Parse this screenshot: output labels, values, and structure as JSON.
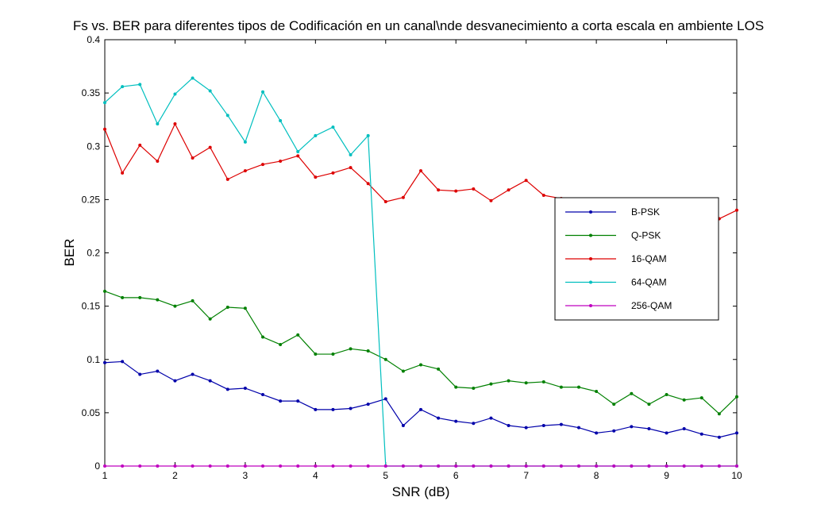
{
  "chart_data": {
    "type": "line",
    "title": "Fs vs. BER para diferentes tipos de Codificación en un canal\\nde desvanecimiento a corta escala en ambiente LOS",
    "xlabel": "SNR (dB)",
    "ylabel": "BER",
    "xlim": [
      1,
      10
    ],
    "ylim": [
      0,
      0.4
    ],
    "xticks": [
      1,
      2,
      3,
      4,
      5,
      6,
      7,
      8,
      9,
      10
    ],
    "yticks": [
      0,
      0.05,
      0.1,
      0.15,
      0.2,
      0.25,
      0.3,
      0.35,
      0.4
    ],
    "ytick_labels": [
      "0",
      "0.05",
      "0.1",
      "0.15",
      "0.2",
      "0.25",
      "0.3",
      "0.35",
      "0.4"
    ],
    "grid": false,
    "legend_position": "right",
    "x": [
      1,
      1.25,
      1.5,
      1.75,
      2,
      2.25,
      2.5,
      2.75,
      3,
      3.25,
      3.5,
      3.75,
      4,
      4.25,
      4.5,
      4.75,
      5,
      5.25,
      5.5,
      5.75,
      6,
      6.25,
      6.5,
      6.75,
      7,
      7.25,
      7.5,
      7.75,
      8,
      8.25,
      8.5,
      8.75,
      9,
      9.25,
      9.5,
      9.75,
      10
    ],
    "series": [
      {
        "name": "B-PSK",
        "color": "#0000aa",
        "values": [
          0.097,
          0.098,
          0.086,
          0.089,
          0.08,
          0.086,
          0.08,
          0.072,
          0.073,
          0.067,
          0.061,
          0.061,
          0.053,
          0.053,
          0.054,
          0.058,
          0.063,
          0.038,
          0.053,
          0.045,
          0.042,
          0.04,
          0.045,
          0.038,
          0.036,
          0.038,
          0.039,
          0.036,
          0.031,
          0.033,
          0.037,
          0.035,
          0.031,
          0.035,
          0.03,
          0.027,
          0.031
        ]
      },
      {
        "name": "Q-PSK",
        "color": "#008000",
        "values": [
          0.164,
          0.158,
          0.158,
          0.156,
          0.15,
          0.155,
          0.138,
          0.149,
          0.148,
          0.121,
          0.114,
          0.123,
          0.105,
          0.105,
          0.11,
          0.108,
          0.1,
          0.089,
          0.095,
          0.091,
          0.074,
          0.073,
          0.077,
          0.08,
          0.078,
          0.079,
          0.074,
          0.074,
          0.07,
          0.058,
          0.068,
          0.058,
          0.067,
          0.062,
          0.064,
          0.049,
          0.065
        ]
      },
      {
        "name": "16-QAM",
        "color": "#dd0000",
        "values": [
          0.316,
          0.275,
          0.301,
          0.286,
          0.321,
          0.289,
          0.299,
          0.269,
          0.277,
          0.283,
          0.286,
          0.291,
          0.271,
          0.275,
          0.28,
          0.265,
          0.248,
          0.252,
          0.277,
          0.259,
          0.258,
          0.26,
          0.249,
          0.259,
          0.268,
          0.254,
          0.251,
          0.25,
          0.247,
          0.248,
          0.25,
          0.246,
          0.243,
          0.24,
          0.241,
          0.232,
          0.24
        ]
      },
      {
        "name": "64-QAM",
        "color": "#00bfbf",
        "values": [
          0.341,
          0.356,
          0.358,
          0.321,
          0.349,
          0.364,
          0.352,
          0.329,
          0.304,
          0.351,
          0.324,
          0.295,
          0.31,
          0.318,
          0.292,
          0.31,
          0,
          0,
          0,
          0,
          0,
          0,
          0,
          0,
          0,
          0,
          0,
          0,
          0,
          0,
          0,
          0,
          0,
          0,
          0,
          0,
          0
        ]
      },
      {
        "name": "256-QAM",
        "color": "#bf00bf",
        "values": [
          0,
          0,
          0,
          0,
          0,
          0,
          0,
          0,
          0,
          0,
          0,
          0,
          0,
          0,
          0,
          0,
          0,
          0,
          0,
          0,
          0,
          0,
          0,
          0,
          0,
          0,
          0,
          0,
          0,
          0,
          0,
          0,
          0,
          0,
          0,
          0,
          0
        ]
      }
    ]
  }
}
